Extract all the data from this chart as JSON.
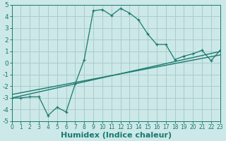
{
  "x": [
    0,
    1,
    2,
    3,
    4,
    5,
    6,
    7,
    8,
    9,
    10,
    11,
    12,
    13,
    14,
    15,
    16,
    17,
    18,
    19,
    20,
    21,
    22,
    23
  ],
  "y": [
    -3.0,
    -3.0,
    -2.9,
    -2.9,
    -4.5,
    -3.8,
    -4.2,
    -1.8,
    0.3,
    4.5,
    4.6,
    4.1,
    4.7,
    4.3,
    3.7,
    2.5,
    1.6,
    1.6,
    0.3,
    0.6,
    0.8,
    1.1,
    0.2,
    1.1
  ],
  "line_color": "#1a7a6e",
  "bg_color": "#cce8e8",
  "grid_color": "#aacccc",
  "xlabel": "Humidex (Indice chaleur)",
  "ylim": [
    -5,
    5
  ],
  "xlim": [
    0,
    23
  ],
  "reg_line1_x": [
    0,
    23
  ],
  "reg_line1_y": [
    -3.0,
    1.0
  ],
  "reg_line2_x": [
    0,
    23
  ],
  "reg_line2_y": [
    -2.7,
    0.7
  ]
}
